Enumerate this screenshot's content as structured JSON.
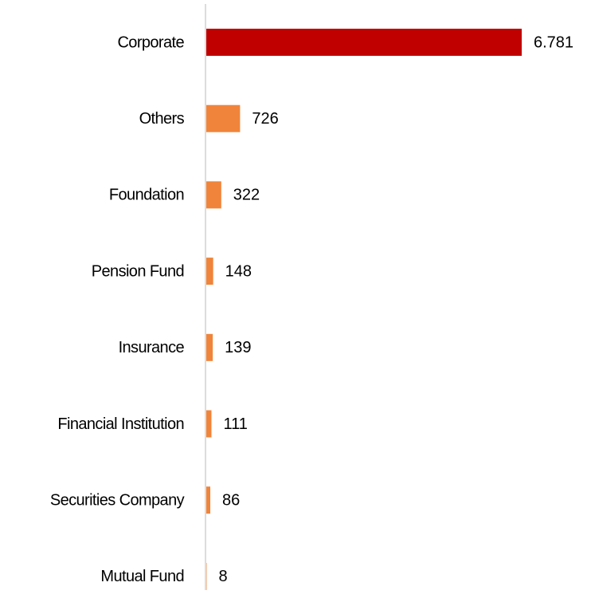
{
  "chart_data": {
    "type": "hbar",
    "categories": [
      "Corporate",
      "Others",
      "Foundation",
      "Pension Fund",
      "Insurance",
      "Financial Institution",
      "Securities Company",
      "Mutual Fund"
    ],
    "values": [
      6781,
      726,
      322,
      148,
      139,
      111,
      86,
      8
    ],
    "value_labels": [
      "6.781",
      "726",
      "322",
      "148",
      "139",
      "111",
      "86",
      "8"
    ],
    "colors": [
      "#c00000",
      "#f0843a",
      "#f0843a",
      "#f0843a",
      "#f0843a",
      "#f0843a",
      "#f0843a",
      "#f0843a"
    ]
  }
}
